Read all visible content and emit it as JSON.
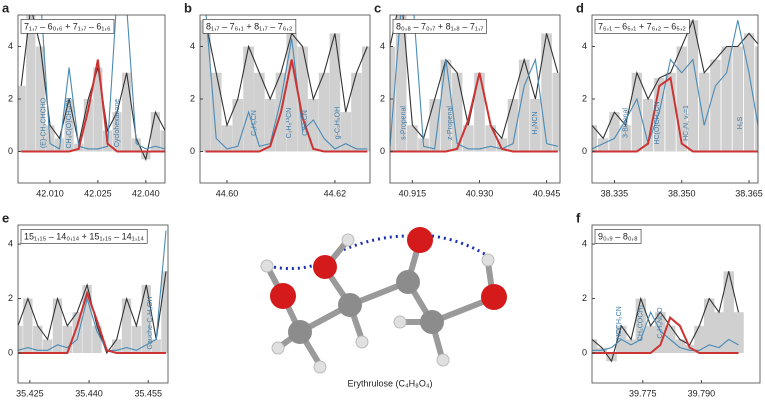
{
  "chart_data": [
    {
      "type": "spectrum",
      "panel": "a",
      "transition": "7₁,₇ – 6₀,₆ + 7₁,₇ – 6₁,₆",
      "x": [
        42.001,
        42.004,
        42.007,
        42.01,
        42.013,
        42.016,
        42.019,
        42.022,
        42.025,
        42.028,
        42.031,
        42.034,
        42.037,
        42.04,
        42.043,
        42.046
      ],
      "series": [
        {
          "color": "#333333",
          "values": [
            2.5,
            5.5,
            4,
            1,
            0.5,
            2,
            0.3,
            2,
            3.2,
            0.8,
            1.5,
            3,
            0.5,
            -0.3,
            1.5,
            0.8
          ]
        },
        {
          "color": "#4a8bb5",
          "values": [
            5.5,
            5.5,
            6,
            0.3,
            0.1,
            3.2,
            0.2,
            0.1,
            0.1,
            0.2,
            6,
            5.5,
            0.3,
            0.1,
            0.2,
            0.1
          ]
        },
        {
          "color": "#cc3333",
          "values": [
            0,
            0,
            0,
            0,
            0,
            0,
            0.1,
            1.6,
            3.5,
            0.3,
            0,
            0,
            0,
            0,
            0,
            0
          ]
        }
      ],
      "annotations": [
        {
          "text": "(E)-CH₃CHCHO",
          "x": 42.008
        },
        {
          "text": "CH₃C(O)CH₂CN",
          "x": 42.016
        },
        {
          "text": "Cyclohexanone",
          "x": 42.031
        }
      ],
      "xlim": [
        42.0,
        42.046
      ],
      "ylim": [
        -1.2,
        5.2
      ],
      "xticks": [
        {
          "value": 42.01,
          "label": "42.010"
        },
        42.025,
        {
          "value": 42.04,
          "label": "42.040"
        }
      ],
      "yticks": [
        0,
        2,
        4
      ]
    },
    {
      "type": "spectrum",
      "panel": "b",
      "transition": "8₁,₇ – 7₆,₁ + 8₁,₇ – 7₆,₂",
      "x": [
        44.596,
        44.598,
        44.6,
        44.602,
        44.604,
        44.606,
        44.608,
        44.61,
        44.612,
        44.614,
        44.616,
        44.618,
        44.62,
        44.622,
        44.624,
        44.626
      ],
      "series": [
        {
          "color": "#333333",
          "values": [
            5,
            3,
            1,
            2,
            4,
            3,
            2,
            3,
            4.5,
            4,
            2,
            3,
            4.5,
            1.5,
            3,
            4
          ]
        },
        {
          "color": "#4a8bb5",
          "values": [
            5.5,
            0.5,
            0.1,
            0.2,
            1.5,
            0.2,
            0.3,
            2,
            4.3,
            0.8,
            1.2,
            0.5,
            0.1,
            0.3,
            0.1,
            0.1
          ]
        },
        {
          "color": "#cc3333",
          "values": [
            0,
            0,
            0,
            0,
            0,
            0,
            0.2,
            1.5,
            3.5,
            1.3,
            0.1,
            0,
            0,
            0,
            0,
            0
          ]
        }
      ],
      "annotations": [
        {
          "text": "C₂H₅CN",
          "x": 44.605
        },
        {
          "text": "C₂H₅¹³CN",
          "x": 44.6115
        },
        {
          "text": "C₂H₅CN",
          "x": 44.6145
        },
        {
          "text": "g-C₂H₅OH",
          "x": 44.6205
        }
      ],
      "xlim": [
        44.595,
        44.6265
      ],
      "ylim": [
        -1.2,
        5.2
      ],
      "xticks": [
        {
          "value": 44.6,
          "label": "44.60"
        },
        44.62
      ],
      "yticks": [
        0,
        2,
        4
      ]
    },
    {
      "type": "spectrum",
      "panel": "c",
      "transition": "8₀,₈ – 7₀,₇ + 8₁,₈ – 7₁,₇",
      "x": [
        40.91,
        40.9125,
        40.915,
        40.9175,
        40.92,
        40.9225,
        40.925,
        40.9275,
        40.93,
        40.9325,
        40.935,
        40.9375,
        40.94,
        40.9425,
        40.945,
        40.9475
      ],
      "series": [
        {
          "color": "#333333",
          "values": [
            4,
            6,
            1,
            0.5,
            2,
            3.5,
            3,
            1,
            3,
            1,
            0.5,
            2,
            3.5,
            2,
            4.5,
            3
          ]
        },
        {
          "color": "#4a8bb5",
          "values": [
            0.2,
            5.5,
            6,
            0.2,
            0.1,
            3.5,
            0.3,
            0.1,
            0.1,
            0.2,
            0.1,
            0.3,
            2.5,
            3.5,
            0.3,
            0.2
          ]
        },
        {
          "color": "#cc3333",
          "values": [
            0,
            0,
            0,
            0,
            0,
            0,
            0.1,
            1.2,
            3,
            1,
            0.1,
            0,
            0,
            0,
            0,
            0
          ]
        }
      ],
      "annotations": [
        {
          "text": "s-Propenal",
          "x": 40.913
        },
        {
          "text": "z-Propenal",
          "x": 40.9235
        },
        {
          "text": "H₂NCN",
          "x": 40.9425
        }
      ],
      "xlim": [
        40.91,
        40.948
      ],
      "ylim": [
        -1.2,
        5.2
      ],
      "xticks": [
        40.915,
        {
          "value": 40.93,
          "label": "40.930"
        },
        40.945
      ],
      "yticks": [
        0,
        2,
        4
      ]
    },
    {
      "type": "spectrum",
      "panel": "d",
      "transition": "7₆,₁ – 6₅,₁ + 7₆,₂ – 6₅,₂",
      "x": [
        38.33,
        38.3325,
        38.335,
        38.3375,
        38.34,
        38.3425,
        38.345,
        38.3475,
        38.35,
        38.3525,
        38.355,
        38.3575,
        38.36,
        38.3625,
        38.365,
        38.3675
      ],
      "series": [
        {
          "color": "#333333",
          "values": [
            1,
            0.5,
            1.5,
            1,
            3,
            2,
            2.8,
            3,
            4,
            5,
            3,
            3.5,
            4,
            4,
            4.5,
            4
          ]
        },
        {
          "color": "#4a8bb5",
          "values": [
            0.1,
            0.3,
            0.5,
            1.2,
            2,
            0.3,
            1.5,
            3.5,
            3,
            3.5,
            1,
            2.5,
            3,
            5,
            3,
            0.5
          ]
        },
        {
          "color": "#cc3333",
          "values": [
            0,
            0,
            0,
            0,
            0,
            0.3,
            2.5,
            2.8,
            0.3,
            0,
            0,
            0,
            0,
            0,
            0,
            0
          ]
        }
      ],
      "annotations": [
        {
          "text": "3-Butenal",
          "x": 38.3375
        },
        {
          "text": "HC(O)CH₂CN",
          "x": 38.3445
        },
        {
          "text": "HC₃N, v₇=1",
          "x": 38.351
        },
        {
          "text": "H₂S",
          "x": 38.363
        }
      ],
      "xlim": [
        38.33,
        38.367
      ],
      "ylim": [
        -1.2,
        5.2
      ],
      "xticks": [
        38.335,
        {
          "value": 38.35,
          "label": "38.350"
        },
        38.365
      ],
      "yticks": [
        0,
        2,
        4
      ]
    },
    {
      "type": "spectrum",
      "panel": "e",
      "transition": "15₁,₁₅ – 14₀,₁₄ + 15₁,₁₅ – 14₁,₁₄",
      "x": [
        35.422,
        35.4245,
        35.427,
        35.4295,
        35.432,
        35.4345,
        35.437,
        35.4395,
        35.442,
        35.4445,
        35.447,
        35.4495,
        35.452,
        35.4545,
        35.457,
        35.4595
      ],
      "series": [
        {
          "color": "#333333",
          "values": [
            1,
            2,
            1,
            0.5,
            2,
            1,
            1.5,
            2.5,
            1,
            0,
            0.5,
            2,
            1,
            2.5,
            0.5,
            3
          ]
        },
        {
          "color": "#4a8bb5",
          "values": [
            0.1,
            0.2,
            0.1,
            0.1,
            0.3,
            0.2,
            0.5,
            2,
            0.8,
            0.1,
            0.1,
            0.2,
            0.1,
            0.3,
            0.5,
            4.5
          ]
        },
        {
          "color": "#cc3333",
          "values": [
            0,
            0,
            0,
            0,
            0,
            0,
            1,
            2.2,
            1.2,
            0.1,
            0,
            0,
            0,
            0,
            0,
            0
          ]
        }
      ],
      "annotations": [
        {
          "text": "Gauche-C₂H₅OH",
          "x": 35.4555
        }
      ],
      "xlim": [
        35.422,
        35.46
      ],
      "ylim": [
        -1.1,
        4.7
      ],
      "xticks": [
        35.425,
        {
          "value": 35.44,
          "label": "35.440"
        },
        35.455
      ],
      "yticks": [
        0,
        2,
        4
      ]
    },
    {
      "type": "spectrum",
      "panel": "f",
      "transition": "9₀,₉ – 8₀,₈",
      "x": [
        39.762,
        39.7645,
        39.767,
        39.7695,
        39.772,
        39.7745,
        39.777,
        39.7795,
        39.782,
        39.7845,
        39.787,
        39.7895,
        39.792,
        39.7945,
        39.797,
        39.7995
      ],
      "series": [
        {
          "color": "#333333",
          "values": [
            0.5,
            0.2,
            -0.3,
            1,
            0.5,
            2,
            1,
            1.5,
            1,
            0.5,
            0.3,
            1,
            2,
            1.5,
            3,
            1.5
          ]
        },
        {
          "color": "#4a8bb5",
          "values": [
            0.1,
            0.1,
            0.2,
            0.5,
            0.3,
            0.5,
            1.5,
            0.8,
            0.5,
            0.2,
            0.1,
            0.1,
            0.3,
            0.2,
            0.5,
            0.3
          ]
        },
        {
          "color": "#cc3333",
          "values": [
            0,
            0,
            0,
            0,
            0,
            0,
            0,
            0.3,
            1.3,
            1,
            0.2,
            0,
            0,
            0,
            0,
            0
          ]
        }
      ],
      "annotations": [
        {
          "text": "HOCH₂CN",
          "x": 39.769
        },
        {
          "text": "CH₃COCH₃",
          "x": 39.7745
        },
        {
          "text": "C₂H₃NCO",
          "x": 39.7795
        }
      ],
      "xlim": [
        39.762,
        39.805
      ],
      "ylim": [
        -1.1,
        4.7
      ],
      "xticks": [
        39.775,
        {
          "value": 39.79,
          "label": "39.790"
        }
      ],
      "yticks": [
        0,
        2,
        4
      ]
    }
  ],
  "molecule_label": "Erythrulose (C₄H₈O₄)"
}
